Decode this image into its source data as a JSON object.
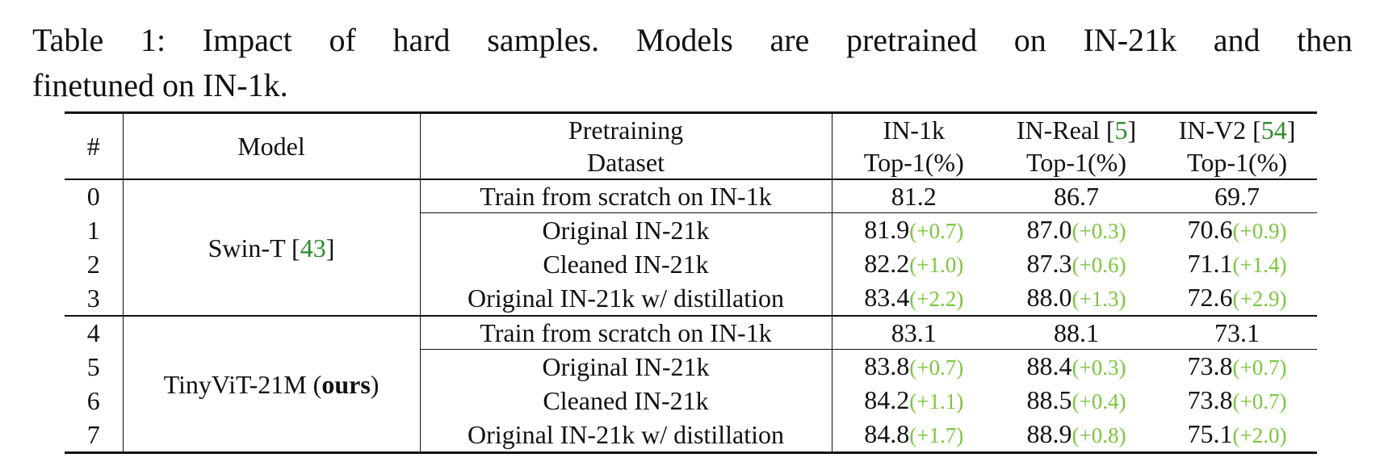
{
  "caption": {
    "line1": "Table 1: Impact of hard samples. Models are pretrained on IN-21k and then",
    "line2": "finetuned on IN-1k."
  },
  "header": {
    "idx": "#",
    "model": "Model",
    "dataset_line1": "Pretraining",
    "dataset_line2": "Dataset",
    "in1k_line1": "IN-1k",
    "in1k_line2": "Top-1(%)",
    "real_name": "IN-Real",
    "real_cite": "5",
    "real_line2": "Top-1(%)",
    "v2_name": "IN-V2",
    "v2_cite": "54",
    "v2_line2": "Top-1(%)"
  },
  "groups": [
    {
      "model_name": "Swin-T",
      "model_cite": "43",
      "rows": [
        {
          "idx": "0",
          "dataset": "Train from scratch on IN-1k",
          "in1k": "81.2",
          "in1k_delta": "",
          "real": "86.7",
          "real_delta": "",
          "v2": "69.7",
          "v2_delta": ""
        },
        {
          "idx": "1",
          "dataset": "Original IN-21k",
          "in1k": "81.9",
          "in1k_delta": "(+0.7)",
          "real": "87.0",
          "real_delta": "(+0.3)",
          "v2": "70.6",
          "v2_delta": "(+0.9)"
        },
        {
          "idx": "2",
          "dataset": "Cleaned IN-21k",
          "in1k": "82.2",
          "in1k_delta": "(+1.0)",
          "real": "87.3",
          "real_delta": "(+0.6)",
          "v2": "71.1",
          "v2_delta": "(+1.4)"
        },
        {
          "idx": "3",
          "dataset": "Original IN-21k w/ distillation",
          "in1k": "83.4",
          "in1k_delta": "(+2.2)",
          "real": "88.0",
          "real_delta": "(+1.3)",
          "v2": "72.6",
          "v2_delta": "(+2.9)"
        }
      ]
    },
    {
      "model_name": "TinyViT-21M",
      "model_suffix_open": "(",
      "model_suffix_bold": "ours",
      "model_suffix_close": ")",
      "rows": [
        {
          "idx": "4",
          "dataset": "Train from scratch on IN-1k",
          "in1k": "83.1",
          "in1k_delta": "",
          "real": "88.1",
          "real_delta": "",
          "v2": "73.1",
          "v2_delta": ""
        },
        {
          "idx": "5",
          "dataset": "Original IN-21k",
          "in1k": "83.8",
          "in1k_delta": "(+0.7)",
          "real": "88.4",
          "real_delta": "(+0.3)",
          "v2": "73.8",
          "v2_delta": "(+0.7)"
        },
        {
          "idx": "6",
          "dataset": "Cleaned IN-21k",
          "in1k": "84.2",
          "in1k_delta": "(+1.1)",
          "real": "88.5",
          "real_delta": "(+0.4)",
          "v2": "73.8",
          "v2_delta": "(+0.7)"
        },
        {
          "idx": "7",
          "dataset": "Original IN-21k w/ distillation",
          "in1k": "84.8",
          "in1k_delta": "(+1.7)",
          "real": "88.9",
          "real_delta": "(+0.8)",
          "v2": "75.1",
          "v2_delta": "(+2.0)"
        }
      ]
    }
  ]
}
